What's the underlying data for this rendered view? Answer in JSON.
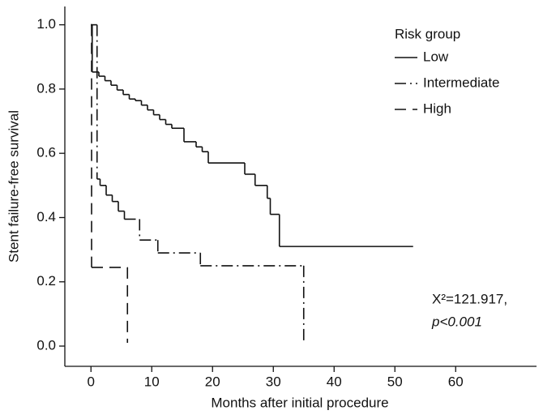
{
  "chart_data": {
    "type": "step",
    "x_label": "Months after initial procedure",
    "y_label": "Stent failure-free survival",
    "xlim": [
      -4.3,
      73.3
    ],
    "ylim": [
      -0.063,
      1.057
    ],
    "xticks": [
      0,
      10,
      20,
      30,
      40,
      50,
      60
    ],
    "yticks": [
      {
        "value": 0,
        "label": "0.0"
      },
      0.2,
      0.4,
      0.6,
      0.8,
      {
        "value": 1,
        "label": "1.0"
      }
    ],
    "legend_title": "Risk group",
    "legend_position": "upper right",
    "annotations": [
      "X²=121.917,",
      "p<0.001"
    ],
    "series": [
      {
        "name": "Low",
        "color": "#111111",
        "dash": "solid",
        "x": [
          0,
          0.2,
          1.3,
          2.3,
          3.3,
          4.3,
          5.3,
          6.3,
          7.3,
          8.3,
          9.3,
          10.3,
          11.3,
          12.3,
          13.3,
          15.3,
          17.3,
          18.3,
          19.3,
          25.3,
          27,
          29,
          29.5,
          31,
          53
        ],
        "values": [
          1.0,
          0.853,
          0.84,
          0.826,
          0.812,
          0.797,
          0.783,
          0.769,
          0.764,
          0.75,
          0.735,
          0.72,
          0.705,
          0.69,
          0.678,
          0.636,
          0.62,
          0.605,
          0.57,
          0.535,
          0.5,
          0.46,
          0.41,
          0.31,
          0.31
        ]
      },
      {
        "name": "Intermediate",
        "color": "#111111",
        "dash": "dashdot",
        "x": [
          0,
          1,
          1.5,
          2.5,
          3.5,
          4.5,
          5.5,
          8,
          11,
          18,
          35,
          35
        ],
        "values": [
          1.0,
          0.52,
          0.5,
          0.47,
          0.45,
          0.42,
          0.395,
          0.33,
          0.29,
          0.25,
          0.25,
          0.01
        ]
      },
      {
        "name": "High",
        "color": "#111111",
        "dash": "longdash",
        "x": [
          0,
          0.1,
          6,
          6
        ],
        "values": [
          1.0,
          0.245,
          0.245,
          0.01
        ]
      }
    ]
  }
}
